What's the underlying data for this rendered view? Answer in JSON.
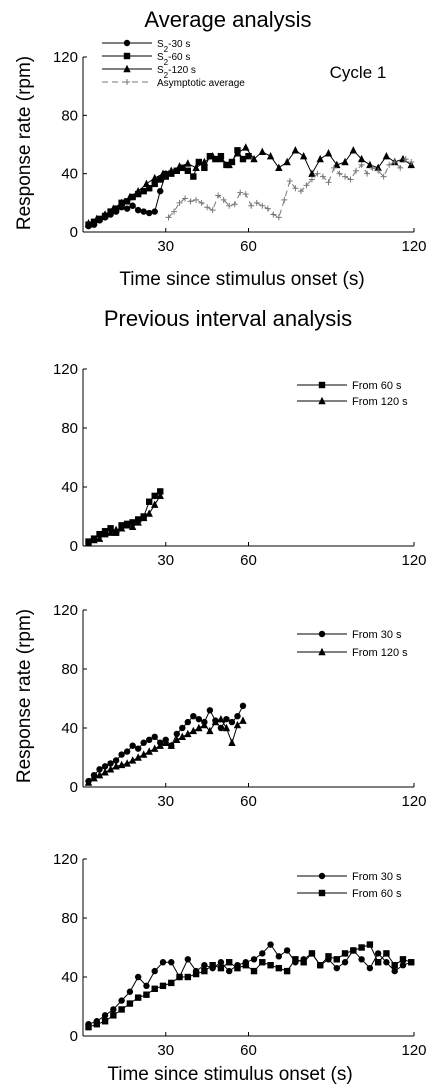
{
  "figure": {
    "section1_title": "Average analysis",
    "section2_title": "Previous interval analysis",
    "ylabel": "Response rate (rpm)",
    "xlabel": "Time since stimulus onset (s)"
  },
  "chart_data": [
    {
      "type": "line",
      "title": "Average analysis",
      "annotation": "Cycle 1",
      "xlabel": "Time since stimulus onset (s)",
      "ylabel": "Response rate (rpm)",
      "xlim": [
        0,
        120
      ],
      "ylim": [
        0,
        120
      ],
      "xticks": [
        30,
        60,
        120
      ],
      "yticks": [
        0,
        40,
        80,
        120
      ],
      "legend_position": "top-left",
      "series": [
        {
          "name": "S2-30 s",
          "label_main": "S",
          "label_sub": "2",
          "label_rest": "-30 s",
          "marker": "circle",
          "dash": "",
          "x": [
            2,
            4,
            6,
            8,
            10,
            12,
            14,
            16,
            18,
            20,
            22,
            24,
            26,
            28,
            30
          ],
          "y": [
            4,
            5,
            8,
            10,
            12,
            14,
            17,
            16,
            18,
            15,
            14,
            13,
            14,
            28,
            40
          ]
        },
        {
          "name": "S2-60 s",
          "label_main": "S",
          "label_sub": "2",
          "label_rest": "-60 s",
          "marker": "square",
          "dash": "",
          "x": [
            2,
            4,
            6,
            8,
            10,
            12,
            14,
            16,
            18,
            20,
            22,
            24,
            26,
            28,
            30,
            32,
            34,
            36,
            38,
            40,
            42,
            44,
            46,
            48,
            50,
            52,
            54,
            56,
            58,
            60
          ],
          "y": [
            5,
            7,
            9,
            11,
            14,
            16,
            20,
            21,
            24,
            26,
            28,
            30,
            33,
            36,
            38,
            40,
            42,
            44,
            42,
            38,
            48,
            44,
            52,
            50,
            52,
            46,
            48,
            56,
            50,
            52
          ]
        },
        {
          "name": "S2-120 s",
          "label_main": "S",
          "label_sub": "2",
          "label_rest": "-120 s",
          "marker": "triangle",
          "dash": "",
          "x": [
            2,
            5,
            8,
            11,
            14,
            17,
            20,
            23,
            26,
            29,
            32,
            35,
            38,
            41,
            44,
            47,
            50,
            53,
            56,
            59,
            62,
            65,
            68,
            71,
            74,
            77,
            80,
            83,
            86,
            89,
            92,
            95,
            98,
            101,
            104,
            107,
            110,
            113,
            116,
            119
          ],
          "y": [
            6,
            9,
            12,
            16,
            20,
            24,
            28,
            33,
            37,
            40,
            42,
            45,
            47,
            44,
            48,
            52,
            50,
            46,
            54,
            58,
            50,
            55,
            52,
            44,
            48,
            56,
            52,
            40,
            50,
            54,
            46,
            48,
            56,
            50,
            46,
            44,
            52,
            48,
            50,
            46
          ]
        },
        {
          "name": "Asymptotic average",
          "label_main": "Asymptotic average",
          "label_sub": "",
          "label_rest": "",
          "marker": "plus",
          "dash": "6,4",
          "x": [
            31,
            33,
            35,
            37,
            39,
            41,
            43,
            45,
            47,
            49,
            51,
            53,
            55,
            57,
            59,
            61,
            63,
            65,
            67,
            69,
            71,
            73,
            75,
            77,
            79,
            81,
            83,
            85,
            87,
            89,
            91,
            93,
            95,
            97,
            99,
            101,
            103,
            105,
            107,
            109,
            111,
            113,
            115,
            117,
            119
          ],
          "y": [
            10,
            14,
            20,
            23,
            21,
            22,
            20,
            17,
            15,
            25,
            22,
            18,
            19,
            27,
            26,
            18,
            20,
            18,
            16,
            12,
            10,
            22,
            35,
            30,
            28,
            32,
            36,
            40,
            38,
            34,
            44,
            40,
            38,
            36,
            42,
            46,
            40,
            44,
            42,
            38,
            46,
            48,
            44,
            50,
            48
          ]
        }
      ]
    },
    {
      "type": "line",
      "title": "Previous interval analysis",
      "xlim": [
        0,
        120
      ],
      "ylim": [
        0,
        120
      ],
      "xticks": [
        30,
        60,
        120
      ],
      "yticks": [
        0,
        40,
        80,
        120
      ],
      "legend_position": "top-right",
      "series": [
        {
          "name": "From 60 s",
          "label_main": "From 60 s",
          "label_sub": "",
          "label_rest": "",
          "marker": "square",
          "dash": "",
          "x": [
            2,
            4,
            6,
            8,
            10,
            12,
            14,
            16,
            18,
            20,
            22,
            24,
            26,
            28
          ],
          "y": [
            3,
            5,
            8,
            10,
            12,
            9,
            14,
            15,
            16,
            18,
            20,
            30,
            34,
            37
          ]
        },
        {
          "name": "From 120 s",
          "label_main": "From 120 s",
          "label_sub": "",
          "label_rest": "",
          "marker": "triangle",
          "dash": "",
          "x": [
            2,
            4,
            6,
            8,
            10,
            12,
            14,
            16,
            18,
            20,
            22,
            24,
            26,
            28
          ],
          "y": [
            2,
            4,
            5,
            8,
            9,
            11,
            12,
            14,
            13,
            16,
            19,
            22,
            28,
            34
          ]
        }
      ]
    },
    {
      "type": "line",
      "xlim": [
        0,
        120
      ],
      "ylim": [
        0,
        120
      ],
      "xticks": [
        30,
        60,
        120
      ],
      "yticks": [
        0,
        40,
        80,
        120
      ],
      "legend_position": "top-right",
      "series": [
        {
          "name": "From 30 s",
          "label_main": "From 30 s",
          "label_sub": "",
          "label_rest": "",
          "marker": "circle",
          "dash": "",
          "x": [
            2,
            4,
            6,
            8,
            10,
            12,
            14,
            16,
            18,
            20,
            22,
            24,
            26,
            28,
            30,
            32,
            34,
            36,
            38,
            40,
            42,
            44,
            46,
            48,
            50,
            52,
            54,
            56,
            58
          ],
          "y": [
            4,
            8,
            12,
            14,
            16,
            18,
            22,
            24,
            28,
            26,
            30,
            32,
            34,
            30,
            32,
            28,
            36,
            40,
            44,
            48,
            46,
            44,
            52,
            45,
            40,
            46,
            44,
            48,
            55
          ]
        },
        {
          "name": "From 120 s",
          "label_main": "From 120 s",
          "label_sub": "",
          "label_rest": "",
          "marker": "triangle",
          "dash": "",
          "x": [
            2,
            4,
            6,
            8,
            10,
            12,
            14,
            16,
            18,
            20,
            22,
            24,
            26,
            28,
            30,
            32,
            34,
            36,
            38,
            40,
            42,
            44,
            46,
            48,
            50,
            52,
            54,
            56,
            58
          ],
          "y": [
            3,
            6,
            8,
            10,
            12,
            14,
            15,
            16,
            18,
            20,
            22,
            24,
            26,
            28,
            30,
            28,
            32,
            34,
            36,
            38,
            40,
            42,
            38,
            44,
            46,
            40,
            30,
            42,
            45
          ]
        }
      ]
    },
    {
      "type": "line",
      "xlabel": "Time since stimulus onset (s)",
      "xlim": [
        0,
        120
      ],
      "ylim": [
        0,
        120
      ],
      "xticks": [
        30,
        60,
        120
      ],
      "yticks": [
        0,
        40,
        80,
        120
      ],
      "legend_position": "top-right",
      "series": [
        {
          "name": "From 30 s",
          "label_main": "From 30 s",
          "label_sub": "",
          "label_rest": "",
          "marker": "circle",
          "dash": "",
          "x": [
            2,
            5,
            8,
            11,
            14,
            17,
            20,
            23,
            26,
            29,
            32,
            35,
            38,
            41,
            44,
            47,
            50,
            53,
            56,
            59,
            62,
            65,
            68,
            71,
            74,
            77,
            80,
            83,
            86,
            89,
            92,
            95,
            98,
            101,
            104,
            107,
            110,
            113,
            116,
            119
          ],
          "y": [
            8,
            10,
            14,
            18,
            24,
            30,
            40,
            34,
            44,
            50,
            50,
            40,
            52,
            44,
            48,
            46,
            50,
            44,
            48,
            50,
            52,
            56,
            62,
            54,
            58,
            50,
            52,
            56,
            48,
            52,
            46,
            50,
            58,
            52,
            46,
            56,
            50,
            44,
            48,
            50
          ]
        },
        {
          "name": "From 60 s",
          "label_main": "From 60 s",
          "label_sub": "",
          "label_rest": "",
          "marker": "square",
          "dash": "",
          "x": [
            2,
            5,
            8,
            11,
            14,
            17,
            20,
            23,
            26,
            29,
            32,
            35,
            38,
            41,
            44,
            47,
            50,
            53,
            56,
            59,
            62,
            65,
            68,
            71,
            74,
            77,
            80,
            83,
            86,
            89,
            92,
            95,
            98,
            101,
            104,
            107,
            110,
            113,
            116,
            119
          ],
          "y": [
            6,
            8,
            10,
            14,
            18,
            22,
            26,
            28,
            32,
            34,
            36,
            40,
            40,
            42,
            44,
            48,
            46,
            50,
            46,
            48,
            44,
            50,
            48,
            46,
            44,
            52,
            50,
            56,
            48,
            54,
            52,
            56,
            58,
            60,
            62,
            50,
            56,
            48,
            52,
            50
          ]
        }
      ]
    }
  ]
}
